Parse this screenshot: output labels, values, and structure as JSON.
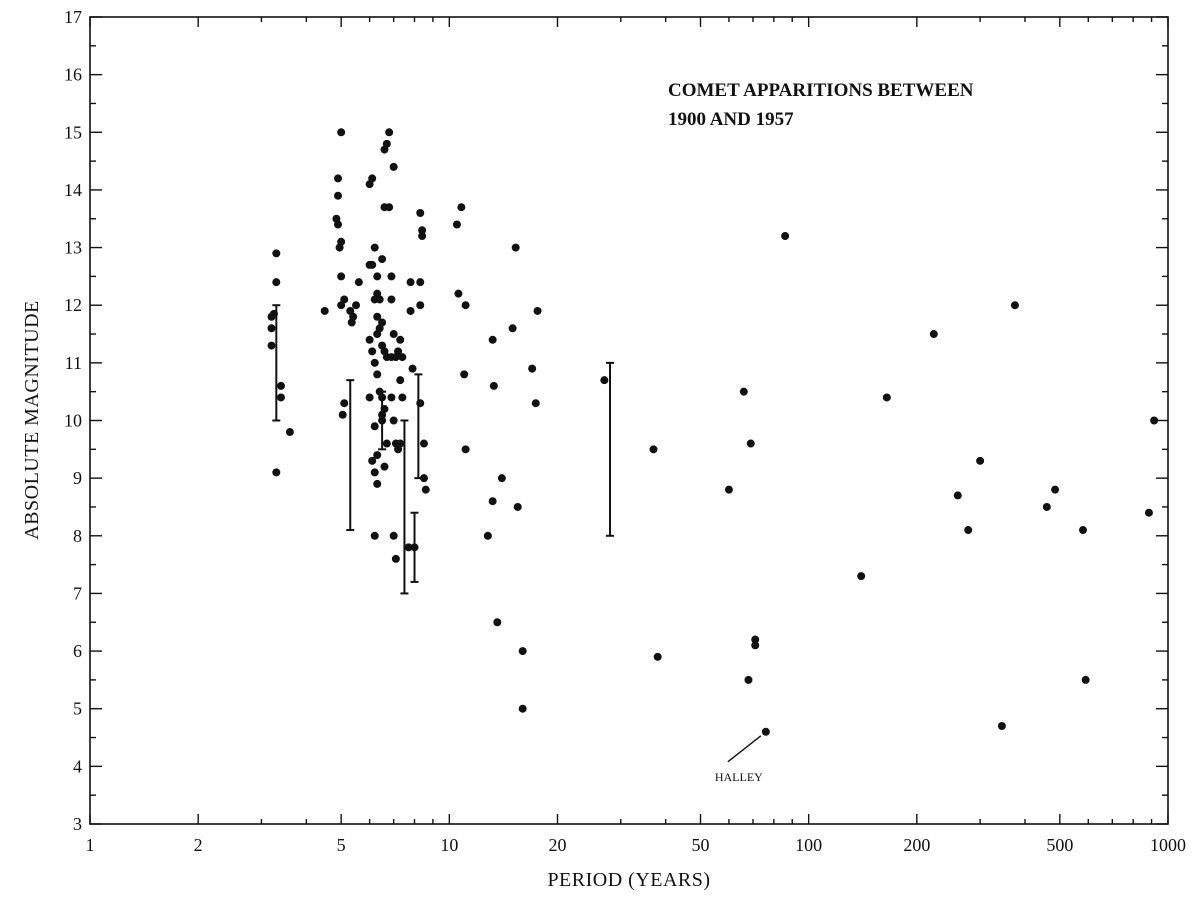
{
  "chart_data": {
    "type": "scatter",
    "title": [
      "COMET APPARITIONS BETWEEN",
      "1900 AND 1957"
    ],
    "xlabel": "PERIOD (YEARS)",
    "ylabel": "ABSOLUTE MAGNITUDE",
    "x_scale": "log",
    "xlim": [
      1,
      1000
    ],
    "ylim": [
      3,
      17
    ],
    "grid": false,
    "x_ticks": [
      1,
      2,
      5,
      10,
      20,
      50,
      100,
      200,
      500,
      1000
    ],
    "x_tick_labels": [
      "1",
      "2",
      "5",
      "10",
      "20",
      "50",
      "100",
      "200",
      "500",
      "1000"
    ],
    "y_ticks": [
      3,
      4,
      5,
      6,
      7,
      8,
      9,
      10,
      11,
      12,
      13,
      14,
      15,
      16,
      17
    ],
    "y_tick_labels": [
      "3",
      "4",
      "5",
      "6",
      "7",
      "8",
      "9",
      "10",
      "11",
      "12",
      "13",
      "14",
      "15",
      "16",
      "17"
    ],
    "points": [
      [
        3.3,
        12.9
      ],
      [
        3.3,
        12.4
      ],
      [
        3.25,
        11.85
      ],
      [
        3.2,
        11.8
      ],
      [
        3.2,
        11.6
      ],
      [
        3.2,
        11.3
      ],
      [
        3.3,
        9.1
      ],
      [
        3.4,
        10.6
      ],
      [
        3.4,
        10.4
      ],
      [
        3.6,
        9.8
      ],
      [
        4.5,
        11.9
      ],
      [
        4.9,
        14.2
      ],
      [
        4.9,
        13.9
      ],
      [
        4.85,
        13.5
      ],
      [
        4.9,
        13.4
      ],
      [
        5.0,
        13.1
      ],
      [
        4.95,
        13.0
      ],
      [
        5.0,
        15.0
      ],
      [
        5.0,
        12.5
      ],
      [
        5.1,
        12.1
      ],
      [
        5.0,
        12.0
      ],
      [
        5.1,
        10.3
      ],
      [
        5.05,
        10.1
      ],
      [
        5.3,
        11.9
      ],
      [
        5.35,
        11.7
      ],
      [
        5.4,
        11.8
      ],
      [
        5.5,
        12.0
      ],
      [
        5.6,
        12.4
      ],
      [
        6.0,
        14.1
      ],
      [
        6.1,
        14.2
      ],
      [
        6.0,
        12.7
      ],
      [
        6.1,
        12.7
      ],
      [
        6.2,
        13.0
      ],
      [
        6.3,
        12.5
      ],
      [
        6.2,
        12.1
      ],
      [
        6.3,
        12.2
      ],
      [
        6.4,
        12.1
      ],
      [
        6.3,
        11.8
      ],
      [
        6.4,
        11.6
      ],
      [
        6.3,
        11.5
      ],
      [
        6.5,
        11.7
      ],
      [
        6.5,
        11.3
      ],
      [
        6.0,
        11.4
      ],
      [
        6.1,
        11.2
      ],
      [
        6.2,
        11.0
      ],
      [
        6.3,
        10.8
      ],
      [
        6.4,
        10.5
      ],
      [
        6.5,
        10.4
      ],
      [
        6.0,
        10.4
      ],
      [
        6.2,
        9.9
      ],
      [
        6.3,
        9.4
      ],
      [
        6.2,
        9.1
      ],
      [
        6.3,
        8.9
      ],
      [
        6.1,
        9.3
      ],
      [
        6.2,
        8.0
      ],
      [
        6.5,
        10.0
      ],
      [
        6.5,
        10.1
      ],
      [
        6.6,
        14.7
      ],
      [
        6.7,
        14.8
      ],
      [
        6.6,
        13.7
      ],
      [
        6.8,
        13.7
      ],
      [
        6.5,
        12.8
      ],
      [
        6.6,
        11.2
      ],
      [
        6.7,
        11.1
      ],
      [
        6.6,
        10.2
      ],
      [
        6.7,
        9.6
      ],
      [
        6.6,
        9.2
      ],
      [
        6.8,
        15.0
      ],
      [
        6.9,
        12.5
      ],
      [
        7.0,
        14.4
      ],
      [
        6.9,
        12.1
      ],
      [
        7.0,
        11.5
      ],
      [
        6.9,
        11.1
      ],
      [
        7.1,
        11.1
      ],
      [
        7.2,
        11.2
      ],
      [
        6.9,
        10.4
      ],
      [
        7.0,
        10.0
      ],
      [
        7.1,
        9.6
      ],
      [
        7.2,
        9.5
      ],
      [
        7.0,
        8.0
      ],
      [
        7.1,
        7.6
      ],
      [
        7.3,
        11.4
      ],
      [
        7.4,
        11.1
      ],
      [
        7.3,
        10.7
      ],
      [
        7.4,
        10.4
      ],
      [
        7.3,
        9.6
      ],
      [
        7.8,
        12.4
      ],
      [
        7.8,
        11.9
      ],
      [
        7.9,
        10.9
      ],
      [
        7.7,
        7.8
      ],
      [
        8.0,
        7.8
      ],
      [
        8.3,
        13.6
      ],
      [
        8.4,
        13.3
      ],
      [
        8.4,
        13.2
      ],
      [
        8.3,
        12.4
      ],
      [
        8.3,
        12.0
      ],
      [
        8.3,
        10.3
      ],
      [
        8.5,
        9.6
      ],
      [
        8.5,
        9.0
      ],
      [
        8.6,
        8.8
      ],
      [
        10.5,
        13.4
      ],
      [
        10.8,
        13.7
      ],
      [
        10.6,
        12.2
      ],
      [
        11.1,
        12.0
      ],
      [
        11.0,
        10.8
      ],
      [
        11.1,
        9.5
      ],
      [
        13.2,
        11.4
      ],
      [
        13.3,
        10.6
      ],
      [
        13.2,
        8.6
      ],
      [
        12.8,
        8.0
      ],
      [
        13.6,
        6.5
      ],
      [
        14.0,
        9.0
      ],
      [
        15.0,
        11.6
      ],
      [
        15.3,
        13.0
      ],
      [
        15.5,
        8.5
      ],
      [
        16.0,
        6.0
      ],
      [
        16.0,
        5.0
      ],
      [
        17.0,
        10.9
      ],
      [
        17.4,
        10.3
      ],
      [
        17.6,
        11.9
      ],
      [
        27.0,
        10.7
      ],
      [
        37.0,
        9.5
      ],
      [
        38.0,
        5.9
      ],
      [
        60.0,
        8.8
      ],
      [
        66.0,
        10.5
      ],
      [
        68.0,
        5.5
      ],
      [
        69.0,
        9.6
      ],
      [
        71.0,
        6.1
      ],
      [
        71.0,
        6.2
      ],
      [
        76.0,
        4.6
      ],
      [
        86.0,
        13.2
      ],
      [
        140.0,
        7.3
      ],
      [
        165.0,
        10.4
      ],
      [
        223.0,
        11.5
      ],
      [
        260.0,
        8.7
      ],
      [
        278.0,
        8.1
      ],
      [
        300.0,
        9.3
      ],
      [
        345.0,
        4.7
      ],
      [
        375.0,
        12.0
      ],
      [
        460.0,
        8.5
      ],
      [
        485.0,
        8.8
      ],
      [
        580.0,
        8.1
      ],
      [
        590.0,
        5.5
      ],
      [
        885.0,
        8.4
      ],
      [
        915.0,
        10.0
      ]
    ],
    "range_bars": [
      {
        "x": 3.3,
        "low": 10.0,
        "high": 12.0
      },
      {
        "x": 5.3,
        "low": 8.1,
        "high": 10.7
      },
      {
        "x": 6.5,
        "low": 9.5,
        "high": 10.5
      },
      {
        "x": 7.5,
        "low": 7.0,
        "high": 10.0
      },
      {
        "x": 8.0,
        "low": 7.2,
        "high": 8.4
      },
      {
        "x": 8.2,
        "low": 9.0,
        "high": 10.8
      },
      {
        "x": 28.0,
        "low": 8.0,
        "high": 11.0
      }
    ],
    "annotations": [
      {
        "text": "HALLEY",
        "x": 76.0,
        "y": 4.6
      }
    ]
  }
}
